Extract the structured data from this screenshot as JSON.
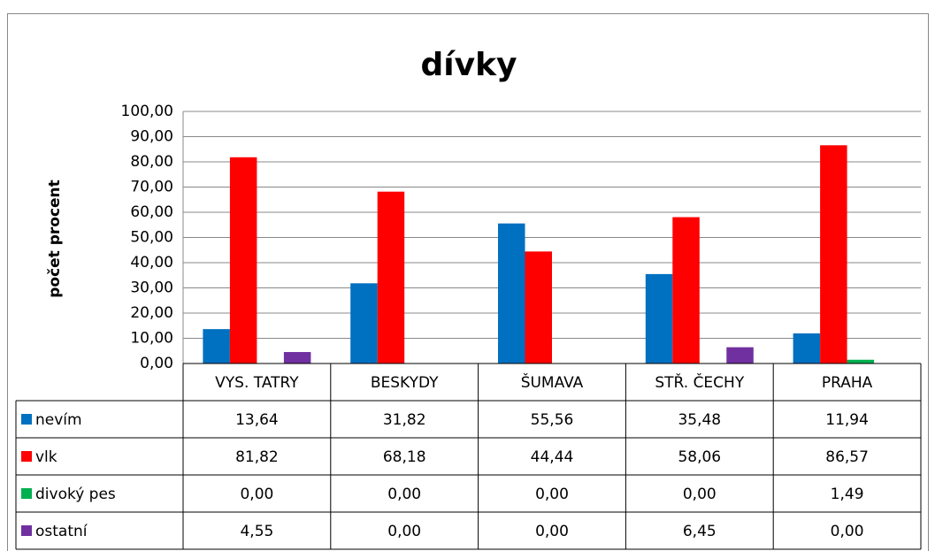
{
  "chart_data": {
    "type": "bar",
    "title": "dívky",
    "y_label": "počet procent",
    "categories": [
      "VYS. TATRY",
      "BESKYDY",
      "ŠUMAVA",
      "STŘ. ČECHY",
      "PRAHA"
    ],
    "series": [
      {
        "name": "nevím",
        "color": "#0070c0",
        "values": [
          13.64,
          31.82,
          55.56,
          35.48,
          11.94
        ],
        "value_labels": [
          "13,64",
          "31,82",
          "55,56",
          "35,48",
          "11,94"
        ]
      },
      {
        "name": "vlk",
        "color": "#ff0000",
        "values": [
          81.82,
          68.18,
          44.44,
          58.06,
          86.57
        ],
        "value_labels": [
          "81,82",
          "68,18",
          "44,44",
          "58,06",
          "86,57"
        ]
      },
      {
        "name": "divoký pes",
        "color": "#00b050",
        "values": [
          0,
          0,
          0,
          0,
          1.49
        ],
        "value_labels": [
          "0,00",
          "0,00",
          "0,00",
          "0,00",
          "1,49"
        ]
      },
      {
        "name": "ostatní",
        "color": "#7030a0",
        "values": [
          4.55,
          0,
          0,
          6.45,
          0
        ],
        "value_labels": [
          "4,55",
          "0,00",
          "0,00",
          "6,45",
          "0,00"
        ]
      }
    ],
    "ylim": [
      0,
      100
    ],
    "yticks": [
      {
        "value": 0,
        "label": "0,00"
      },
      {
        "value": 10,
        "label": "10,00"
      },
      {
        "value": 20,
        "label": "20,00"
      },
      {
        "value": 30,
        "label": "30,00"
      },
      {
        "value": 40,
        "label": "40,00"
      },
      {
        "value": 50,
        "label": "50,00"
      },
      {
        "value": 60,
        "label": "60,00"
      },
      {
        "value": 70,
        "label": "70,00"
      },
      {
        "value": 80,
        "label": "80,00"
      },
      {
        "value": 90,
        "label": "90,00"
      },
      {
        "value": 100,
        "label": "100,00"
      }
    ],
    "grid": true
  }
}
